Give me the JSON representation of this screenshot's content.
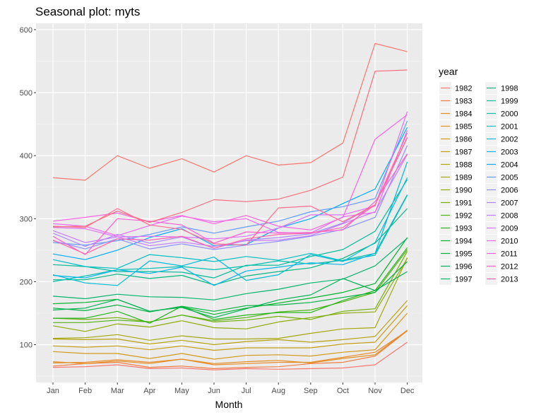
{
  "chart_data": {
    "type": "line",
    "title": "Seasonal plot: myts",
    "xlabel": "Month",
    "ylabel": "",
    "ylim": [
      40,
      610
    ],
    "yticks": [
      100,
      200,
      300,
      400,
      500,
      600
    ],
    "grid": true,
    "legend": {
      "title": "year",
      "placement": "right"
    },
    "categories": [
      "Jan",
      "Feb",
      "Mar",
      "Apr",
      "May",
      "Jun",
      "Jul",
      "Aug",
      "Sep",
      "Oct",
      "Nov",
      "Dec"
    ],
    "series": [
      {
        "name": "1982",
        "color": "#F8766D",
        "values": [
          64,
          65,
          68,
          62,
          63,
          60,
          62,
          61,
          62,
          63,
          68,
          104
        ]
      },
      {
        "name": "1983",
        "color": "#F17E42",
        "values": [
          66,
          70,
          72,
          64,
          66,
          62,
          64,
          65,
          70,
          72,
          82,
          122
        ]
      },
      {
        "name": "1984",
        "color": "#E98A26",
        "values": [
          71,
          72,
          76,
          72,
          77,
          68,
          70,
          72,
          72,
          80,
          88,
          122
        ]
      },
      {
        "name": "1985",
        "color": "#E08F20",
        "values": [
          73,
          70,
          74,
          70,
          77,
          70,
          73,
          75,
          71,
          78,
          84,
          123
        ]
      },
      {
        "name": "1986",
        "color": "#D39A1A",
        "values": [
          89,
          86,
          86,
          78,
          86,
          77,
          83,
          84,
          82,
          88,
          92,
          150
        ]
      },
      {
        "name": "1987",
        "color": "#C49F14",
        "values": [
          98,
          96,
          98,
          92,
          98,
          91,
          95,
          95,
          95,
          101,
          104,
          162
        ]
      },
      {
        "name": "1988",
        "color": "#B5A30E",
        "values": [
          109,
          108,
          109,
          101,
          107,
          100,
          105,
          108,
          104,
          108,
          113,
          170
        ]
      },
      {
        "name": "1989",
        "color": "#A3A80A",
        "values": [
          110,
          111,
          116,
          107,
          114,
          109,
          109,
          110,
          118,
          125,
          127,
          238
        ]
      },
      {
        "name": "1990",
        "color": "#8FAB08",
        "values": [
          130,
          121,
          133,
          128,
          138,
          127,
          125,
          136,
          143,
          150,
          152,
          237
        ]
      },
      {
        "name": "1991",
        "color": "#73AF0A",
        "values": [
          142,
          140,
          143,
          136,
          147,
          136,
          139,
          145,
          140,
          153,
          157,
          248
        ]
      },
      {
        "name": "1992",
        "color": "#4FB311",
        "values": [
          135,
          135,
          139,
          136,
          147,
          138,
          143,
          152,
          155,
          168,
          183,
          251
        ]
      },
      {
        "name": "1993",
        "color": "#27B51C",
        "values": [
          142,
          142,
          153,
          134,
          161,
          140,
          147,
          151,
          151,
          170,
          186,
          254
        ]
      },
      {
        "name": "1994",
        "color": "#00B52C",
        "values": [
          165,
          167,
          172,
          153,
          160,
          148,
          158,
          166,
          174,
          183,
          197,
          270
        ]
      },
      {
        "name": "1995",
        "color": "#00B33F",
        "values": [
          158,
          154,
          163,
          152,
          161,
          153,
          162,
          163,
          167,
          175,
          183,
          232
        ]
      },
      {
        "name": "1996",
        "color": "#00B254",
        "values": [
          155,
          158,
          172,
          153,
          159,
          143,
          157,
          171,
          179,
          205,
          186,
          216
        ]
      },
      {
        "name": "1997",
        "color": "#00B46A",
        "values": [
          177,
          173,
          180,
          176,
          175,
          171,
          181,
          188,
          198,
          204,
          225,
          269
        ]
      },
      {
        "name": "1998",
        "color": "#00B881",
        "values": [
          203,
          203,
          212,
          205,
          210,
          195,
          209,
          216,
          222,
          237,
          261,
          316
        ]
      },
      {
        "name": "1999",
        "color": "#00BC99",
        "values": [
          227,
          224,
          216,
          216,
          215,
          206,
          226,
          226,
          240,
          251,
          280,
          362
        ]
      },
      {
        "name": "2000",
        "color": "#00BFAF",
        "values": [
          200,
          209,
          219,
          221,
          224,
          219,
          225,
          233,
          228,
          234,
          245,
          338
        ]
      },
      {
        "name": "2001",
        "color": "#00BFC4",
        "values": [
          235,
          224,
          221,
          243,
          238,
          232,
          240,
          234,
          245,
          233,
          242,
          337
        ]
      },
      {
        "name": "2002",
        "color": "#00BCD8",
        "values": [
          211,
          198,
          194,
          233,
          225,
          239,
          202,
          211,
          243,
          232,
          262,
          365
        ]
      },
      {
        "name": "2003",
        "color": "#00B6EB",
        "values": [
          210,
          206,
          219,
          213,
          223,
          194,
          217,
          223,
          230,
          227,
          245,
          390
        ]
      },
      {
        "name": "2004",
        "color": "#00ADFA",
        "values": [
          244,
          235,
          250,
          270,
          284,
          257,
          259,
          285,
          300,
          324,
          347,
          445
        ]
      },
      {
        "name": "2005",
        "color": "#619CFF",
        "values": [
          262,
          258,
          265,
          275,
          287,
          277,
          287,
          296,
          311,
          319,
          332,
          455
        ]
      },
      {
        "name": "2006",
        "color": "#8F91FF",
        "values": [
          265,
          252,
          268,
          252,
          260,
          251,
          258,
          264,
          272,
          283,
          302,
          416
        ]
      },
      {
        "name": "2007",
        "color": "#AE87FF",
        "values": [
          277,
          256,
          275,
          261,
          271,
          253,
          266,
          270,
          276,
          293,
          322,
          428
        ]
      },
      {
        "name": "2008",
        "color": "#C77CFF",
        "values": [
          281,
          262,
          271,
          257,
          263,
          256,
          265,
          266,
          273,
          292,
          311,
          402
        ]
      },
      {
        "name": "2009",
        "color": "#DC71FA",
        "values": [
          286,
          284,
          271,
          272,
          271,
          268,
          272,
          285,
          306,
          306,
          320,
          470
        ]
      },
      {
        "name": "2010",
        "color": "#EC69EF",
        "values": [
          292,
          288,
          273,
          289,
          304,
          295,
          300,
          278,
          277,
          303,
          310,
          440
        ]
      },
      {
        "name": "2011",
        "color": "#F763E0",
        "values": [
          296,
          302,
          309,
          295,
          305,
          292,
          305,
          288,
          282,
          302,
          426,
          465
        ]
      },
      {
        "name": "2012",
        "color": "#FD61D1",
        "values": [
          272,
          243,
          300,
          296,
          290,
          261,
          279,
          277,
          278,
          282,
          327,
          403
        ]
      },
      {
        "name": "2013",
        "color": "#FF65AE",
        "values": [
          266,
          244,
          268,
          266,
          272,
          253,
          268,
          275,
          277,
          286,
          322,
          436
        ]
      },
      {
        "name": "",
        "color": "#FF6C91",
        "values": [
          288,
          286,
          316,
          290,
          283,
          260,
          258,
          317,
          320,
          295,
          322,
          429
        ]
      },
      {
        "name": "",
        "color": "#F8766D",
        "values": [
          365,
          361,
          400,
          380,
          395,
          374,
          400,
          385,
          389,
          420,
          578,
          565
        ]
      },
      {
        "name": "",
        "color": "#F96E7E",
        "values": [
          287,
          288,
          312,
          294,
          310,
          330,
          327,
          331,
          345,
          366,
          534,
          536
        ]
      }
    ]
  }
}
